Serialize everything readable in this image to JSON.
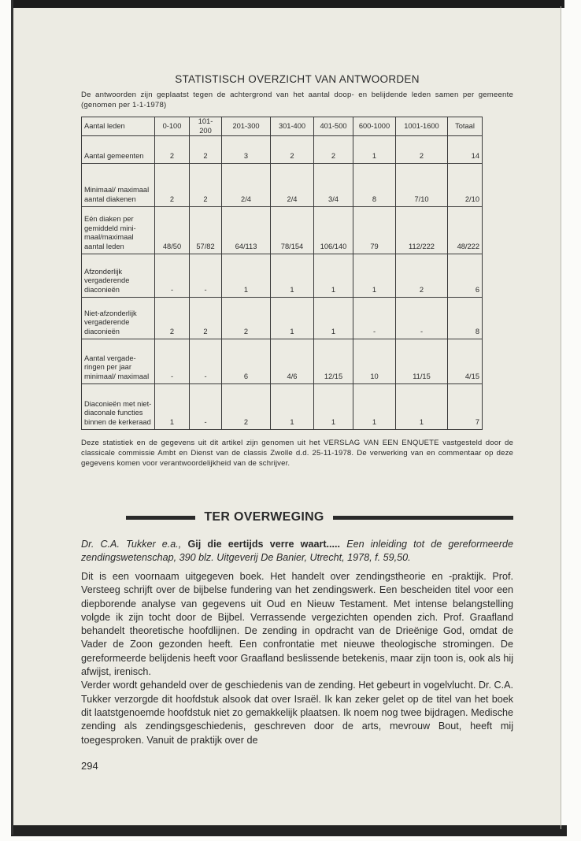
{
  "table_section": {
    "title": "STATISTISCH OVERZICHT VAN ANTWOORDEN",
    "subtitle": "De antwoorden zijn geplaatst tegen de achtergrond van het aantal doop- en belijdende leden samen per gemeente (genomen per 1-1-1978)",
    "headers": [
      "Aantal leden",
      "0-100",
      "101-200",
      "201-300",
      "301-400",
      "401-500",
      "600-1000",
      "1001-1600",
      "Totaal"
    ],
    "rows": [
      {
        "label": "Aantal gemeenten",
        "values": [
          "2",
          "2",
          "3",
          "2",
          "2",
          "1",
          "2",
          "14"
        ]
      },
      {
        "label": "Minimaal/ maximaal aantal diakenen",
        "values": [
          "2",
          "2",
          "2/4",
          "2/4",
          "3/4",
          "8",
          "7/10",
          "2/10"
        ]
      },
      {
        "label": "Eén diaken per gemiddeld mini-maal/maximaal aantal leden",
        "values": [
          "48/50",
          "57/82",
          "64/113",
          "78/154",
          "106/140",
          "79",
          "112/222",
          "48/222"
        ]
      },
      {
        "label": "Afzonderlijk vergaderende diaconieën",
        "values": [
          "-",
          "-",
          "1",
          "1",
          "1",
          "1",
          "2",
          "6"
        ]
      },
      {
        "label": "Niet-afzonderlijk vergaderende diaconieën",
        "values": [
          "2",
          "2",
          "2",
          "1",
          "1",
          "-",
          "-",
          "8"
        ]
      },
      {
        "label": "Aantal vergade-ringen per jaar minimaal/ maximaal",
        "values": [
          "-",
          "-",
          "6",
          "4/6",
          "12/15",
          "10",
          "11/15",
          "4/15"
        ]
      },
      {
        "label": "Diaconieën met niet-diaconale functies binnen de kerkeraad",
        "values": [
          "1",
          "-",
          "2",
          "1",
          "1",
          "1",
          "1",
          "7"
        ]
      }
    ],
    "footnote": "Deze statistiek en de gegevens uit dit artikel zijn genomen uit het VERSLAG VAN EEN ENQUETE vastgesteld door de classicale commissie Ambt en Dienst van de classis Zwolle d.d. 25-11-1978. De verwerking van en commentaar op deze gegevens komen voor verantwoordelijkheid van de schrijver."
  },
  "review": {
    "heading": "TER OVERWEGING",
    "citation_author": "Dr. C.A. Tukker e.a.,",
    "citation_title": "Gij die eertijds verre waart.....",
    "citation_rest": "Een inleiding tot de gereformeerde zendingswetenschap, 390 blz. Uitgeverij De Banier, Utrecht, 1978, f. 59,50.",
    "paragraphs": [
      "Dit is een voornaam uitgegeven boek. Het handelt over zendingstheorie en -praktijk. Prof. Versteeg schrijft over de bijbelse fundering van het zendingswerk. Een bescheiden titel voor een diepborende analyse van gegevens uit Oud en Nieuw Testament. Met intense belangstelling volgde ik zijn tocht door de Bijbel. Verrassende vergezichten openden zich. Prof. Graafland behandelt theoretische hoofdlijnen. De zending in opdracht van de Drieënige God, omdat de Vader de Zoon gezonden heeft. Een confrontatie met nieuwe theologische stromingen. De gereformeerde belijdenis heeft voor Graafland beslissende betekenis, maar zijn toon is, ook als hij afwijst, irenisch.",
      "Verder wordt gehandeld over de geschiedenis van de zending. Het gebeurt in vogelvlucht. Dr. C.A. Tukker verzorgde dit hoofdstuk alsook dat over Israël. Ik kan zeker gelet op de titel van het boek dit laatstgenoemde hoofdstuk niet zo gemakkelijk plaatsen. Ik noem nog twee bijdragen. Medische zending als zendingsgeschiedenis, geschreven door de arts, mevrouw Bout, heeft mij toegesproken. Vanuit de praktijk over de"
    ]
  },
  "page_number": "294"
}
